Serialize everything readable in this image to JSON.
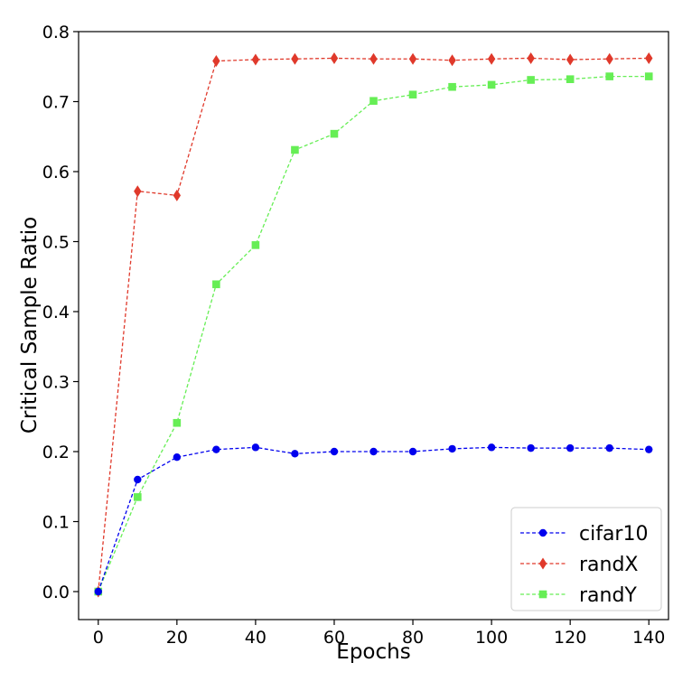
{
  "chart_data": {
    "type": "line",
    "title": "",
    "xlabel": "Epochs",
    "ylabel": "Critical Sample Ratio",
    "xlim": [
      -5,
      145
    ],
    "ylim": [
      -0.04,
      0.8
    ],
    "xticks": [
      0,
      20,
      40,
      60,
      80,
      100,
      120,
      140
    ],
    "xtick_labels": [
      "0",
      "20",
      "40",
      "60",
      "80",
      "100",
      "120",
      "140"
    ],
    "yticks": [
      0.0,
      0.1,
      0.2,
      0.3,
      0.4,
      0.5,
      0.6,
      0.7,
      0.8
    ],
    "ytick_labels": [
      "0.0",
      "0.1",
      "0.2",
      "0.3",
      "0.4",
      "0.5",
      "0.6",
      "0.7",
      "0.8"
    ],
    "grid": false,
    "legend_position": "bottom-right",
    "x": [
      0,
      10,
      20,
      30,
      40,
      50,
      60,
      70,
      80,
      90,
      100,
      110,
      120,
      130,
      140
    ],
    "series": [
      {
        "name": "cifar10",
        "color": "#0000ee",
        "marker": "circle",
        "line_style": "dashed",
        "values": [
          0.0,
          0.16,
          0.192,
          0.203,
          0.206,
          0.197,
          0.2,
          0.2,
          0.2,
          0.204,
          0.206,
          0.205,
          0.205,
          0.205,
          0.203
        ]
      },
      {
        "name": "randX",
        "color": "#e0392b",
        "marker": "diamond",
        "line_style": "dashed",
        "values": [
          0.0,
          0.572,
          0.566,
          0.758,
          0.76,
          0.761,
          0.762,
          0.761,
          0.761,
          0.759,
          0.761,
          0.762,
          0.76,
          0.761,
          0.762
        ]
      },
      {
        "name": "randY",
        "color": "#66ee55",
        "marker": "square",
        "line_style": "dashed",
        "values": [
          0.0,
          0.135,
          0.241,
          0.439,
          0.495,
          0.631,
          0.654,
          0.701,
          0.71,
          0.721,
          0.724,
          0.731,
          0.732,
          0.736,
          0.736
        ]
      }
    ]
  }
}
